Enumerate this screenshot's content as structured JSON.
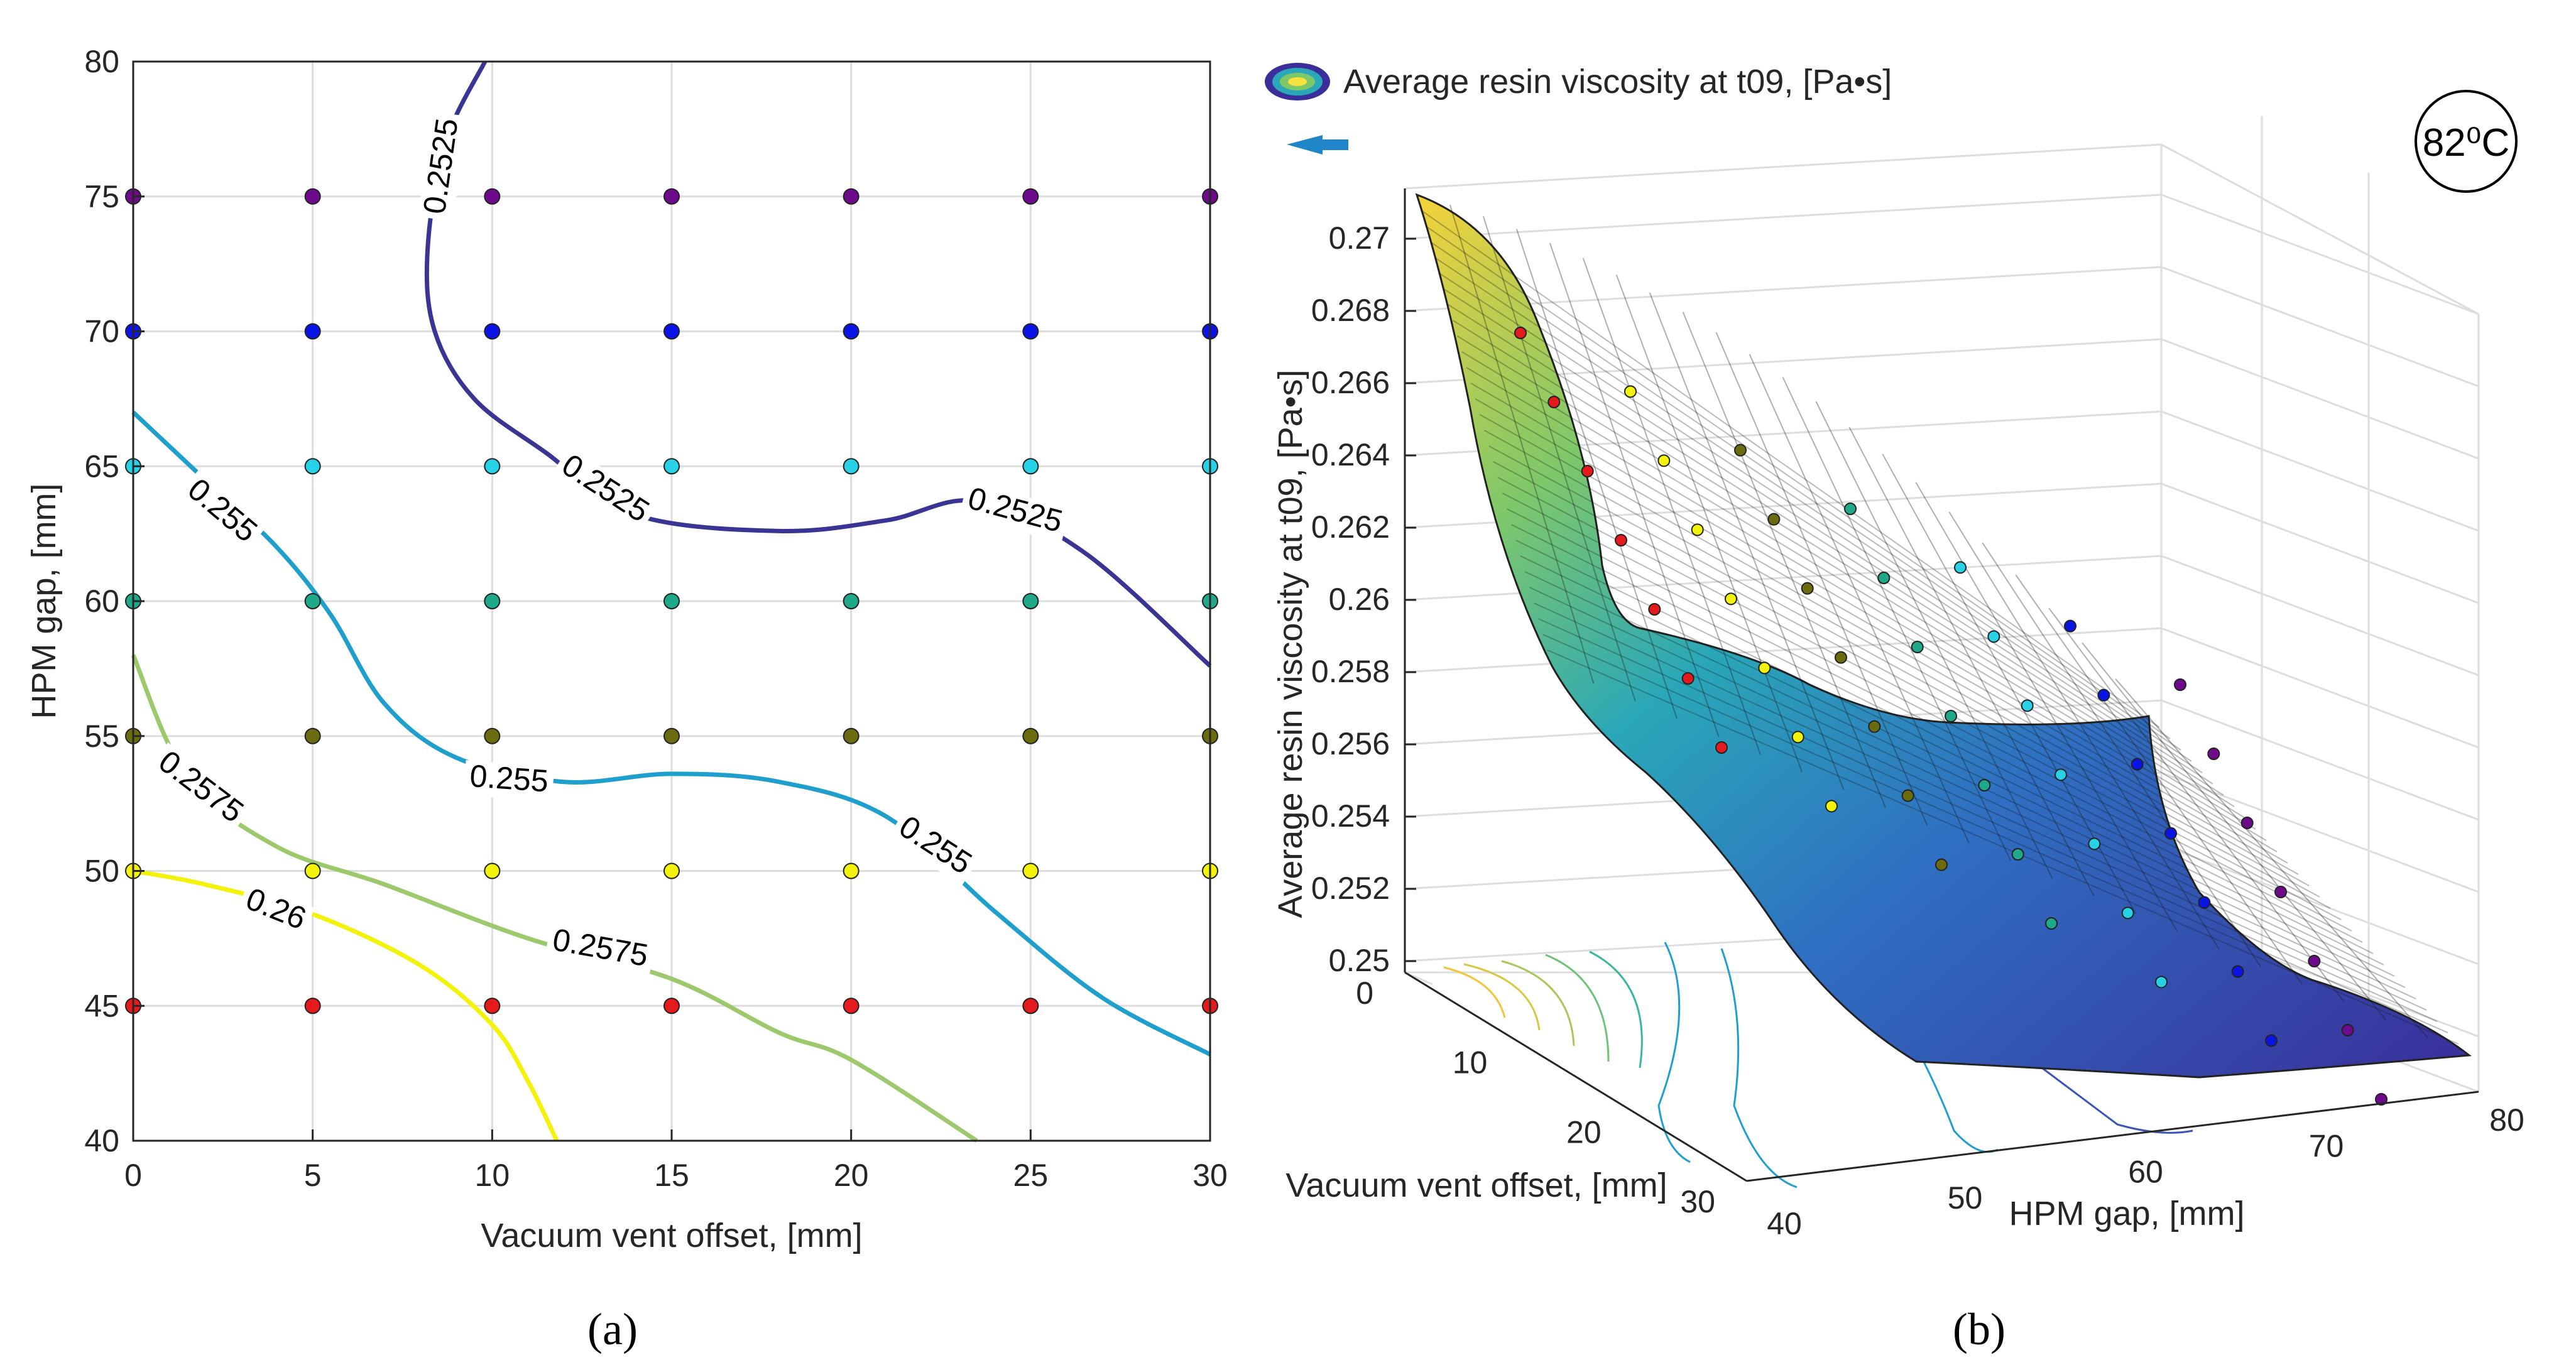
{
  "colors": {
    "c2525": "#3a3594",
    "c255": "#1f9fce",
    "c2575": "#9cc96b",
    "c26": "#f2f20a",
    "grid": "#dddddd",
    "axis": "#262626",
    "arrow": "#1f87c8"
  },
  "panel_a": {
    "sublabel": "(a)",
    "xlabel": "Vacuum vent offset, [mm]",
    "ylabel": "HPM gap, [mm]",
    "xticks": [
      "0",
      "5",
      "10",
      "15",
      "20",
      "25",
      "30"
    ],
    "yticks": [
      "40",
      "45",
      "50",
      "55",
      "60",
      "65",
      "70",
      "75",
      "80"
    ],
    "contour_labels": [
      {
        "text": "0.2525",
        "color": "c2525"
      },
      {
        "text": "0.2525",
        "color": "c2525"
      },
      {
        "text": "0.2525",
        "color": "c2525"
      },
      {
        "text": "0.255",
        "color": "c255"
      },
      {
        "text": "0.255",
        "color": "c255"
      },
      {
        "text": "0.255",
        "color": "c255"
      },
      {
        "text": "0.2575",
        "color": "c2575"
      },
      {
        "text": "0.2575",
        "color": "c2575"
      },
      {
        "text": "0.26",
        "color": "c26"
      }
    ]
  },
  "panel_b": {
    "sublabel": "(b)",
    "legend_text": "Average resin viscosity at t09, [Pa•s]",
    "temperature_badge": "82⁰C",
    "zlabel": "Average resin viscosity at t09, [Pa•s]",
    "xlabel": "Vacuum vent offset, [mm]",
    "ylabel": "HPM gap, [mm]",
    "zticks": [
      "0.25",
      "0.252",
      "0.254",
      "0.256",
      "0.258",
      "0.26",
      "0.262",
      "0.264",
      "0.266",
      "0.268",
      "0.27"
    ],
    "vent_ticks": [
      "0",
      "10",
      "20",
      "30"
    ],
    "gap_ticks": [
      "40",
      "50",
      "60",
      "70",
      "80"
    ]
  },
  "chart_data": [
    {
      "type": "contour",
      "title": "",
      "xlabel": "Vacuum vent offset, [mm]",
      "ylabel": "HPM gap, [mm]",
      "xlim": [
        0,
        30
      ],
      "ylim": [
        40,
        80
      ],
      "grid": true,
      "sample_x": [
        0,
        5,
        10,
        15,
        20,
        25,
        30
      ],
      "sample_y": [
        45,
        50,
        55,
        60,
        65,
        70,
        75
      ],
      "sample_point_colors": {
        "45": "#e41a1c",
        "50": "#f2f20a",
        "55": "#6b6b10",
        "60": "#1fa88a",
        "65": "#28d2e6",
        "70": "#0a14e6",
        "75": "#6e0a8c"
      },
      "contours": [
        {
          "level": 0.2525,
          "color": "c2525",
          "x": [
            9.8,
            8.7,
            8.2,
            8.4,
            9.5,
            11.5,
            14,
            18,
            21,
            23.5,
            26.5,
            30
          ],
          "y": [
            80,
            77,
            73,
            70,
            67.5,
            65.5,
            63.2,
            62.6,
            63,
            63.7,
            61.8,
            57.6
          ]
        },
        {
          "level": 0.255,
          "color": "c255",
          "x": [
            0,
            2,
            4,
            5.5,
            7,
            9,
            12,
            15,
            18,
            21,
            24,
            27,
            30
          ],
          "y": [
            67,
            64.5,
            62,
            59.5,
            56.2,
            54.2,
            53.3,
            53.6,
            53.3,
            52,
            48.5,
            45.3,
            43.2
          ]
        },
        {
          "level": 0.2575,
          "color": "c2575",
          "x": [
            0,
            1.5,
            4,
            7,
            11,
            15,
            18,
            20,
            23.5
          ],
          "y": [
            58,
            53.5,
            50.9,
            49.5,
            47.5,
            46,
            44,
            43,
            40
          ]
        },
        {
          "level": 0.26,
          "color": "c26",
          "x": [
            0,
            2,
            5,
            8,
            10,
            11,
            11.8
          ],
          "y": [
            50,
            49.5,
            48.4,
            46.5,
            44.3,
            42.2,
            40
          ]
        }
      ]
    },
    {
      "type": "surface",
      "title": "",
      "xlabel": "Vacuum vent offset, [mm]",
      "ylabel": "HPM gap, [mm]",
      "zlabel": "Average resin viscosity at t09, [Pa•s]",
      "xlim": [
        0,
        30
      ],
      "ylim": [
        40,
        80
      ],
      "zlim": [
        0.25,
        0.27
      ],
      "legend": "Average resin viscosity at t09, [Pa•s]",
      "annotation": "82⁰C",
      "gap_values": [
        45,
        50,
        55,
        60,
        65,
        70,
        75
      ],
      "vent_values": [
        0,
        5,
        10,
        15,
        20,
        25,
        30
      ]
    }
  ]
}
